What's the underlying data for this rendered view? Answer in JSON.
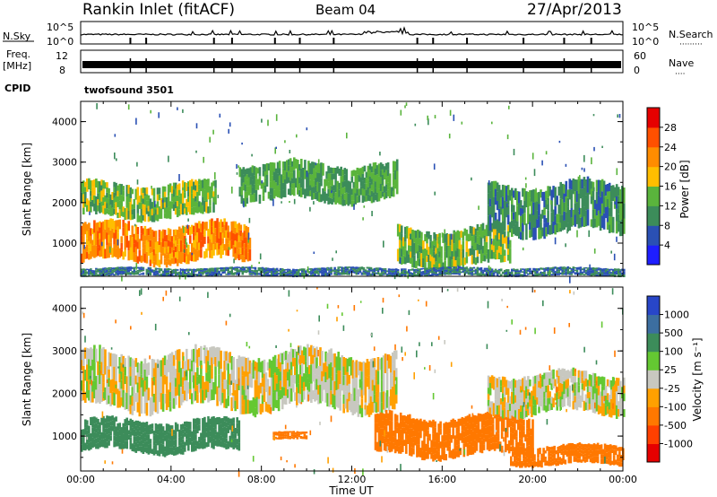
{
  "header": {
    "station": "Rankin Inlet (fitACF)",
    "beam": "Beam 04",
    "date": "27/Apr/2013"
  },
  "noise_panel": {
    "left_label": "N.Sky",
    "left_ticks": [
      "10^5",
      "10^0"
    ],
    "right_ticks": [
      "10^5",
      "10^0"
    ],
    "right_label": "N.Search",
    "right_legend_line": "·········"
  },
  "freq_panel": {
    "left_label_1": "Freq.",
    "left_label_2": "[MHz]",
    "left_ticks": [
      "12",
      "8"
    ],
    "right_ticks": [
      "60",
      "0"
    ],
    "right_label": "Nave",
    "right_legend_line": "····"
  },
  "cpid_panel": {
    "label": "CPID",
    "mode": "twofsound 3501"
  },
  "power_panel": {
    "ylabel": "Slant Range [km]",
    "yticks": [
      "1000",
      "2000",
      "3000",
      "4000"
    ],
    "colorbar_label": "Power [dB]",
    "colorbar_ticks": [
      "4",
      "8",
      "12",
      "16",
      "20",
      "24",
      "28"
    ],
    "colors": [
      "#1e1eff",
      "#2a50b4",
      "#3c8c5a",
      "#5ab43c",
      "#ffbe00",
      "#ff8c00",
      "#ff5000",
      "#e60000"
    ]
  },
  "velocity_panel": {
    "ylabel": "Slant Range [km]",
    "yticks": [
      "1000",
      "2000",
      "3000",
      "4000"
    ],
    "colorbar_label": "Velocity [m s⁻¹]",
    "colorbar_ticks": [
      "1000",
      "500",
      "100",
      "25",
      "-25",
      "-100",
      "-500",
      "-1000"
    ],
    "colors": [
      "#2846c8",
      "#3c6ea0",
      "#3c8c5a",
      "#64c832",
      "#c8c8c0",
      "#ffa000",
      "#ff7800",
      "#ff4000",
      "#e60000"
    ]
  },
  "x_axis": {
    "ticks": [
      "00:00",
      "04:00",
      "08:00",
      "12:00",
      "16:00",
      "20:00",
      "00:00"
    ],
    "label": "Time UT"
  },
  "chart_data": {
    "type": "heatmap",
    "title": "Rankin Inlet (fitACF)   Beam 04   27/Apr/2013",
    "xlabel": "Time UT",
    "ylabel": "Slant Range [km]",
    "xlim_hours": [
      0,
      24
    ],
    "ylim_km": [
      180,
      4500
    ],
    "grid": false,
    "panels": [
      {
        "name": "Power [dB]",
        "scale": [
          0,
          30
        ],
        "echo_regions": [
          {
            "t_start": 0.0,
            "t_end": 7.5,
            "range_min": 500,
            "range_max": 1500,
            "level": 22
          },
          {
            "t_start": 0.0,
            "t_end": 6.0,
            "range_min": 1600,
            "range_max": 2500,
            "level": 14
          },
          {
            "t_start": 7.0,
            "t_end": 14.0,
            "range_min": 2000,
            "range_max": 3000,
            "level": 12
          },
          {
            "t_start": 14.0,
            "t_end": 19.0,
            "range_min": 400,
            "range_max": 1400,
            "level": 14
          },
          {
            "t_start": 18.0,
            "t_end": 24.0,
            "range_min": 1200,
            "range_max": 2500,
            "level": 10
          },
          {
            "t_start": 0.0,
            "t_end": 24.0,
            "range_min": 180,
            "range_max": 400,
            "level": 8
          }
        ]
      },
      {
        "name": "Velocity [m s-1]",
        "scale": [
          -1000,
          1000
        ],
        "echo_regions": [
          {
            "t_start": 0.0,
            "t_end": 7.0,
            "range_min": 600,
            "range_max": 1400,
            "value": 300
          },
          {
            "t_start": 0.0,
            "t_end": 14.0,
            "range_min": 1600,
            "range_max": 3000,
            "value": 0
          },
          {
            "t_start": 8.5,
            "t_end": 10.0,
            "range_min": 900,
            "range_max": 1100,
            "value": -200
          },
          {
            "t_start": 13.0,
            "t_end": 20.0,
            "range_min": 500,
            "range_max": 1500,
            "value": -300
          },
          {
            "t_start": 19.0,
            "t_end": 24.0,
            "range_min": 300,
            "range_max": 800,
            "value": -250
          },
          {
            "t_start": 18.0,
            "t_end": 24.0,
            "range_min": 1500,
            "range_max": 2500,
            "value": 0
          }
        ]
      }
    ]
  }
}
